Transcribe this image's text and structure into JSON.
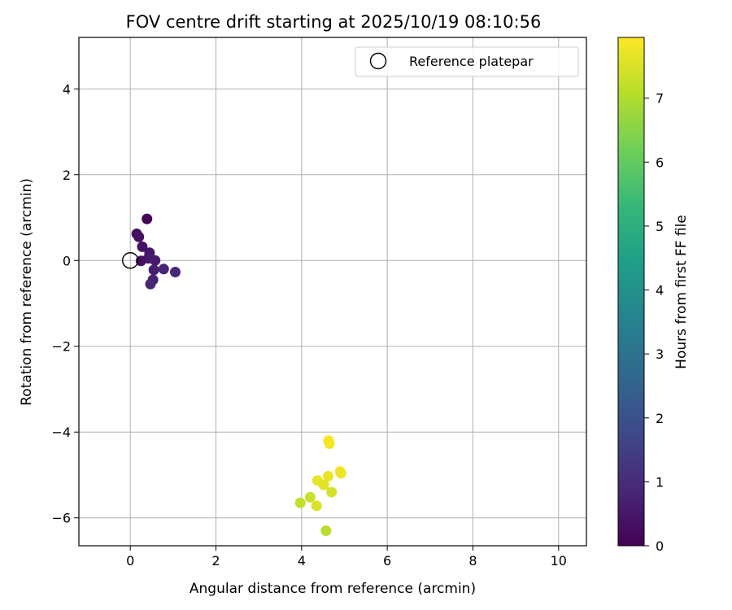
{
  "chart_data": {
    "type": "scatter",
    "title": "FOV centre drift starting at 2025/10/19 08:10:56",
    "xlabel": "Angular distance from reference (arcmin)",
    "ylabel": "Rotation from reference (arcmin)",
    "xlim": [
      -1.2,
      10.65
    ],
    "ylim": [
      -6.65,
      5.2
    ],
    "xticks": [
      0,
      2,
      4,
      6,
      8,
      10
    ],
    "xtick_labels": [
      "0",
      "2",
      "4",
      "6",
      "8",
      "10"
    ],
    "yticks": [
      -6,
      -4,
      -2,
      0,
      2,
      4
    ],
    "ytick_labels": [
      "−6",
      "−4",
      "−2",
      "0",
      "2",
      "4"
    ],
    "grid": true,
    "legend": {
      "position": "top-right",
      "label": "Reference platepar"
    },
    "reference_point": {
      "x": 0,
      "y": 0
    },
    "colorbar": {
      "label": "Hours from first FF file",
      "colormap": "viridis",
      "range": [
        0,
        7.95
      ],
      "ticks": [
        0,
        1,
        2,
        3,
        4,
        5,
        6,
        7
      ],
      "tick_labels": [
        "0",
        "1",
        "2",
        "3",
        "4",
        "5",
        "6",
        "7"
      ]
    },
    "series": [
      {
        "name": "drift",
        "points": [
          {
            "x": 0.39,
            "y": 0.97,
            "hours": 0.05
          },
          {
            "x": 0.15,
            "y": 0.62,
            "hours": 0.25
          },
          {
            "x": 0.2,
            "y": 0.55,
            "hours": 0.3
          },
          {
            "x": 0.28,
            "y": 0.32,
            "hours": 0.4
          },
          {
            "x": 0.45,
            "y": 0.18,
            "hours": 0.5
          },
          {
            "x": 0.42,
            "y": 0.05,
            "hours": 0.55
          },
          {
            "x": 0.25,
            "y": -0.01,
            "hours": 0.35
          },
          {
            "x": 0.58,
            "y": 0.0,
            "hours": 0.6
          },
          {
            "x": 0.55,
            "y": -0.22,
            "hours": 0.7
          },
          {
            "x": 0.78,
            "y": -0.2,
            "hours": 0.8
          },
          {
            "x": 1.05,
            "y": -0.27,
            "hours": 0.9
          },
          {
            "x": 0.53,
            "y": -0.45,
            "hours": 0.75
          },
          {
            "x": 0.47,
            "y": -0.55,
            "hours": 0.85
          },
          {
            "x": 4.63,
            "y": -4.2,
            "hours": 7.9
          },
          {
            "x": 4.65,
            "y": -4.27,
            "hours": 7.85
          },
          {
            "x": 4.9,
            "y": -4.92,
            "hours": 7.8
          },
          {
            "x": 4.92,
            "y": -4.96,
            "hours": 7.75
          },
          {
            "x": 4.62,
            "y": -5.03,
            "hours": 7.7
          },
          {
            "x": 4.37,
            "y": -5.13,
            "hours": 7.65
          },
          {
            "x": 4.52,
            "y": -5.23,
            "hours": 7.6
          },
          {
            "x": 4.7,
            "y": -5.4,
            "hours": 7.45
          },
          {
            "x": 4.2,
            "y": -5.52,
            "hours": 7.3
          },
          {
            "x": 3.97,
            "y": -5.65,
            "hours": 7.2
          },
          {
            "x": 4.35,
            "y": -5.72,
            "hours": 7.5
          },
          {
            "x": 4.57,
            "y": -6.3,
            "hours": 7.1
          }
        ]
      }
    ]
  }
}
